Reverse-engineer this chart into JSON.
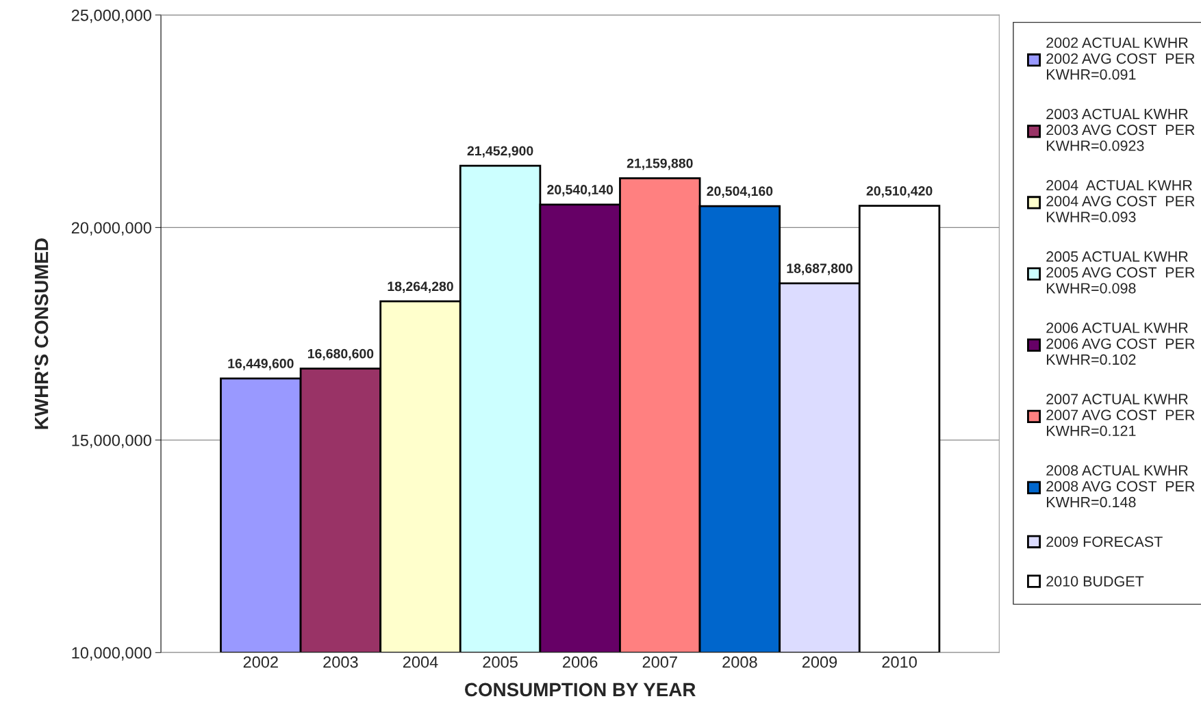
{
  "chart_data": {
    "type": "bar",
    "xlabel": "CONSUMPTION BY YEAR",
    "ylabel": "KWHR'S CONSUMED",
    "categories": [
      "2002",
      "2003",
      "2004",
      "2005",
      "2006",
      "2007",
      "2008",
      "2009",
      "2010"
    ],
    "series": [
      {
        "name": "2002 ACTUAL KWHR\n2002 AVG COST  PER\nKWHR=0.091",
        "color": "#9999ff",
        "values": [
          16449600,
          null,
          null,
          null,
          null,
          null,
          null,
          null,
          null
        ],
        "value_labels": [
          "16,449,600",
          null,
          null,
          null,
          null,
          null,
          null,
          null,
          null
        ]
      },
      {
        "name": "2003 ACTUAL KWHR\n2003 AVG COST  PER\nKWHR=0.0923",
        "color": "#993366",
        "values": [
          null,
          16680600,
          null,
          null,
          null,
          null,
          null,
          null,
          null
        ],
        "value_labels": [
          null,
          "16,680,600",
          null,
          null,
          null,
          null,
          null,
          null,
          null
        ]
      },
      {
        "name": "2004  ACTUAL KWHR\n2004 AVG COST  PER\nKWHR=0.093",
        "color": "#ffffcc",
        "values": [
          null,
          null,
          18264280,
          null,
          null,
          null,
          null,
          null,
          null
        ],
        "value_labels": [
          null,
          null,
          "18,264,280",
          null,
          null,
          null,
          null,
          null,
          null
        ]
      },
      {
        "name": "2005 ACTUAL KWHR\n2005 AVG COST  PER\nKWHR=0.098",
        "color": "#ccffff",
        "values": [
          null,
          null,
          null,
          21452900,
          null,
          null,
          null,
          null,
          null
        ],
        "value_labels": [
          null,
          null,
          null,
          "21,452,900",
          null,
          null,
          null,
          null,
          null
        ]
      },
      {
        "name": "2006 ACTUAL KWHR\n2006 AVG COST  PER\nKWHR=0.102",
        "color": "#660066",
        "values": [
          null,
          null,
          null,
          null,
          20540140,
          null,
          null,
          null,
          null
        ],
        "value_labels": [
          null,
          null,
          null,
          null,
          "20,540,140",
          null,
          null,
          null,
          null
        ]
      },
      {
        "name": "2007 ACTUAL KWHR\n2007 AVG COST  PER\nKWHR=0.121",
        "color": "#ff8080",
        "values": [
          null,
          null,
          null,
          null,
          null,
          21159880,
          null,
          null,
          null
        ],
        "value_labels": [
          null,
          null,
          null,
          null,
          null,
          "21,159,880",
          null,
          null,
          null
        ]
      },
      {
        "name": "2008 ACTUAL KWHR\n2008 AVG COST  PER\nKWHR=0.148",
        "color": "#0066cc",
        "values": [
          null,
          null,
          null,
          null,
          null,
          null,
          20504160,
          null,
          null
        ],
        "value_labels": [
          null,
          null,
          null,
          null,
          null,
          null,
          "20,504,160",
          null,
          null
        ]
      },
      {
        "name": "2009 FORECAST",
        "color": "#dcdcff",
        "values": [
          null,
          null,
          null,
          null,
          null,
          null,
          null,
          18687800,
          null
        ],
        "value_labels": [
          null,
          null,
          null,
          null,
          null,
          null,
          null,
          "18,687,800",
          null
        ]
      },
      {
        "name": "2010 BUDGET",
        "color": "#ffffff",
        "values": [
          null,
          null,
          null,
          null,
          null,
          null,
          null,
          null,
          20510420
        ],
        "value_labels": [
          null,
          null,
          null,
          null,
          null,
          null,
          null,
          null,
          "20,510,420"
        ]
      }
    ],
    "ylim": [
      10000000,
      25000000
    ],
    "yticks": [
      {
        "value": 10000000,
        "label": "10,000,000"
      },
      {
        "value": 15000000,
        "label": "15,000,000"
      },
      {
        "value": 20000000,
        "label": "20,000,000"
      },
      {
        "value": 25000000,
        "label": "25,000,000"
      }
    ],
    "grid": "y",
    "legend": "right"
  }
}
